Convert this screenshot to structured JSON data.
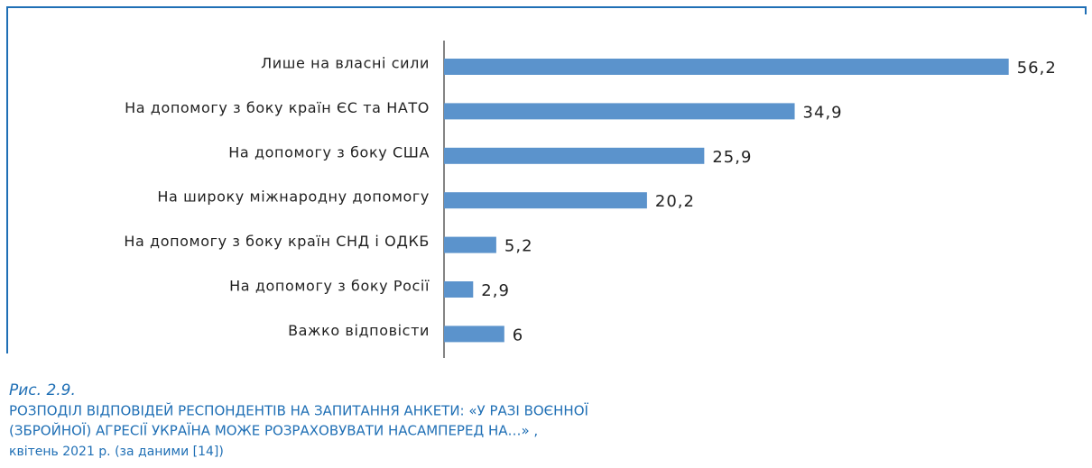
{
  "chart_data": {
    "type": "barh",
    "categories": [
      "Лише на власні сили",
      "На допомогу з боку країн ЄС та НАТО",
      "На допомогу з боку США",
      "На широку міжнародну допомогу",
      "На допомогу з боку країн СНД і ОДКБ",
      "На допомогу з боку Росії",
      "Важко відповісти"
    ],
    "values": [
      56.2,
      34.9,
      25.9,
      20.2,
      5.2,
      2.9,
      6
    ],
    "value_labels": [
      "56,2",
      "34,9",
      "25,9",
      "20,2",
      "5,2",
      "2,9",
      "6"
    ],
    "color": "#5b93cc",
    "xlim": [
      0,
      60
    ],
    "figure_label": "Рис. 2.9.",
    "title_lines": [
      "РОЗПОДІЛ ВІДПОВІДЕЙ РЕСПОНДЕНТІВ НА ЗАПИТАННЯ АНКЕТИ: «У РАЗІ ВОЄННОЇ",
      "(ЗБРОЙНОЇ) АГРЕСІЇ УКРАЇНА МОЖЕ РОЗРАХОВУВАТИ НАСАМПЕРЕД НА…» ,"
    ],
    "subtitle": "квітень 2021 р. (за даними [14])"
  }
}
